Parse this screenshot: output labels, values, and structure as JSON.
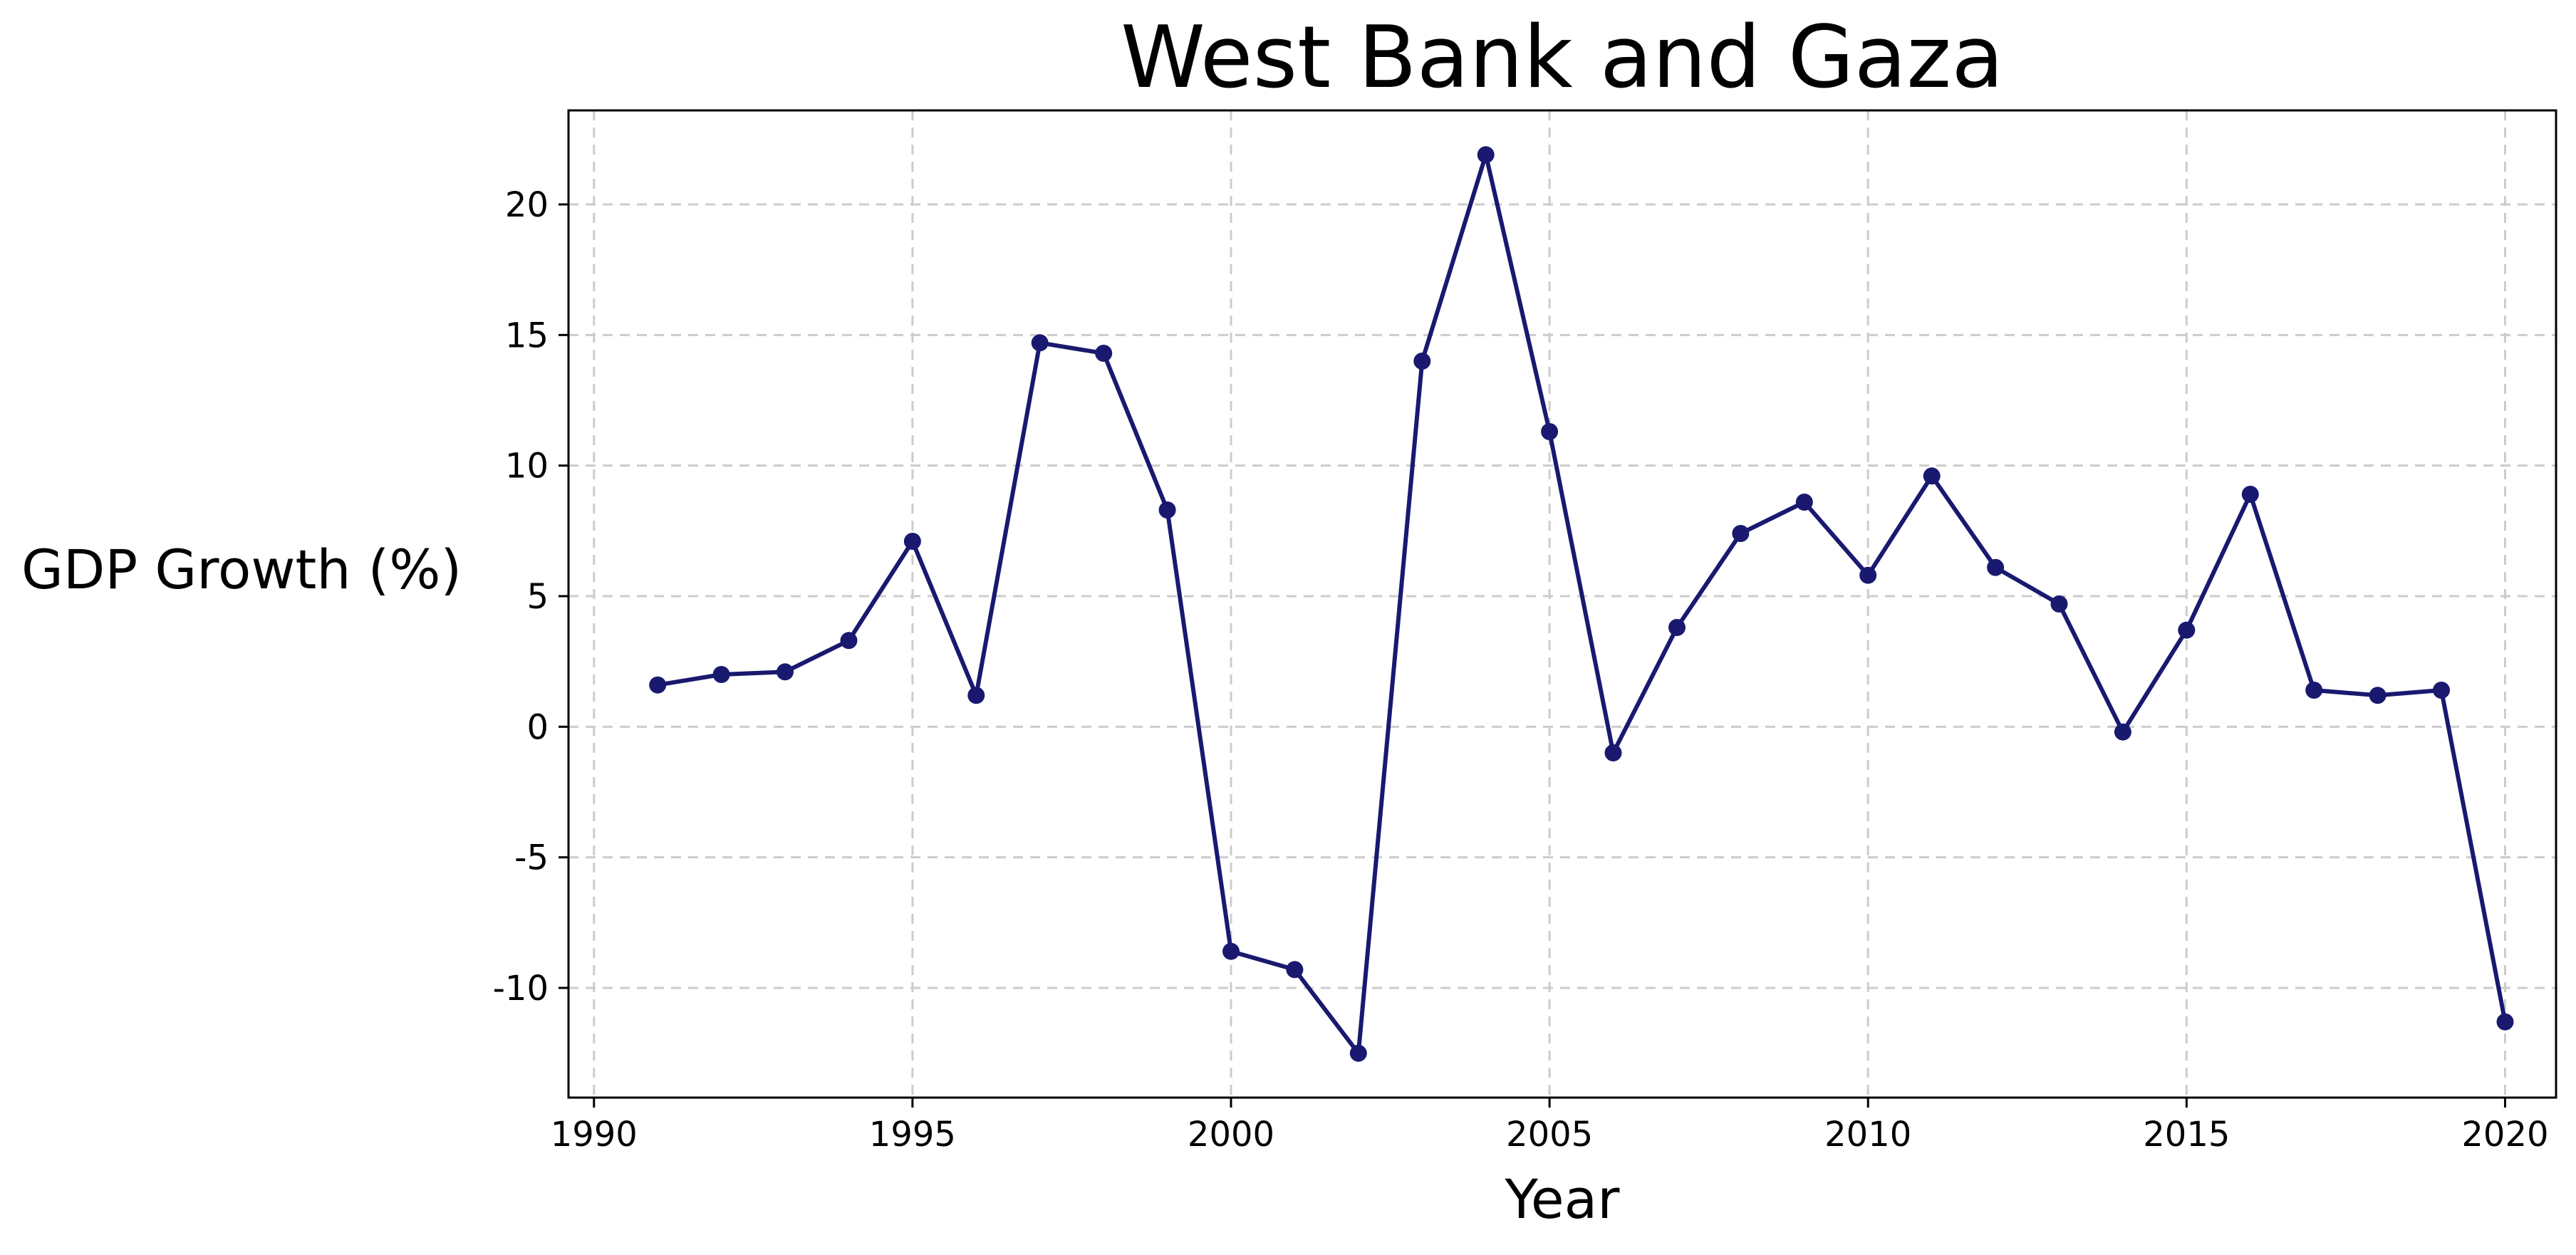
{
  "chart_data": {
    "type": "line",
    "title": "West Bank and Gaza",
    "xlabel": "Year",
    "ylabel": "GDP Growth (%)",
    "xlim": [
      1989.6,
      2020.8
    ],
    "ylim": [
      -14.2,
      23.6
    ],
    "x_ticks": [
      1990,
      1995,
      2000,
      2005,
      2010,
      2015,
      2020
    ],
    "y_ticks": [
      -10,
      -5,
      0,
      5,
      10,
      15,
      20
    ],
    "grid": true,
    "line_color": "#191970",
    "series": [
      {
        "x": [
          1991,
          1992,
          1993,
          1994,
          1995,
          1996,
          1997,
          1998,
          1999,
          2000,
          2001,
          2002,
          2003,
          2004,
          2005,
          2006,
          2007,
          2008,
          2009,
          2010,
          2011,
          2012,
          2013,
          2014,
          2015,
          2016,
          2017,
          2018,
          2019,
          2020
        ],
        "values": [
          1.6,
          2.0,
          2.1,
          3.3,
          7.1,
          1.2,
          14.7,
          14.3,
          8.3,
          -8.6,
          -9.3,
          -12.5,
          14.0,
          21.9,
          11.3,
          -1.0,
          3.8,
          7.4,
          8.6,
          5.8,
          9.6,
          6.1,
          4.7,
          -0.2,
          3.7,
          8.9,
          1.4,
          1.2,
          1.4,
          -11.3
        ]
      }
    ]
  }
}
